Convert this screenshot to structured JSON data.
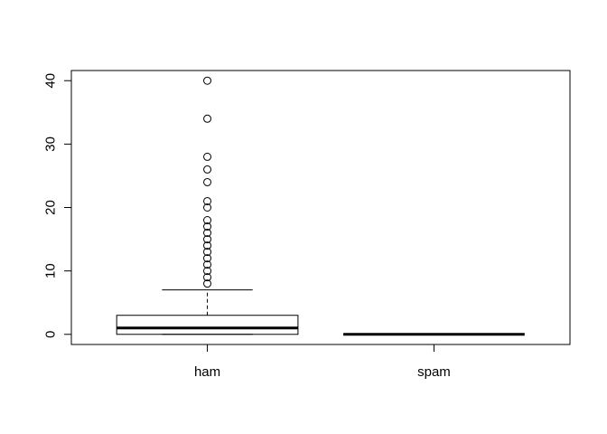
{
  "chart_data": {
    "type": "boxplot",
    "title": "",
    "xlabel": "",
    "ylabel": "",
    "categories": [
      "ham",
      "spam"
    ],
    "ylim": [
      -1.6,
      41.6
    ],
    "yticks": [
      0,
      10,
      20,
      30,
      40
    ],
    "grid": false,
    "legend": "none",
    "boxes": [
      {
        "name": "ham",
        "whisker_low": 0,
        "q1": 0,
        "median": 1,
        "q3": 3,
        "whisker_high": 7,
        "outliers": [
          8,
          9,
          10,
          11,
          12,
          13,
          14,
          15,
          16,
          17,
          18,
          20,
          21,
          24,
          26,
          28,
          34,
          40
        ]
      },
      {
        "name": "spam",
        "whisker_low": 0,
        "q1": 0,
        "median": 0,
        "q3": 0,
        "whisker_high": 0,
        "outliers": []
      }
    ],
    "colors": {
      "stroke": "#000000",
      "background": "#ffffff"
    }
  }
}
